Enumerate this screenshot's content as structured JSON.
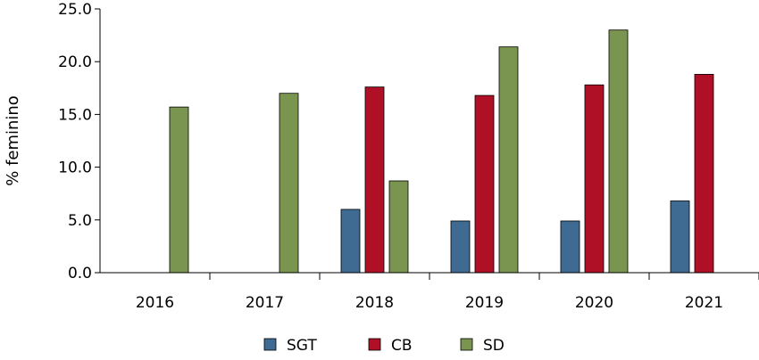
{
  "chart_data": {
    "type": "bar",
    "title": "",
    "xlabel": "",
    "ylabel": "% feminino",
    "ylim": [
      0,
      25
    ],
    "yticks": [
      "0.0",
      "5.0",
      "10.0",
      "15.0",
      "20.0",
      "25.0"
    ],
    "grid": false,
    "legend_position": "bottom",
    "categories": [
      "2016",
      "2017",
      "2018",
      "2019",
      "2020",
      "2021"
    ],
    "series": [
      {
        "name": "SGT",
        "color": "#3f6b93",
        "values": [
          null,
          null,
          6.0,
          4.9,
          4.9,
          6.8
        ]
      },
      {
        "name": "CB",
        "color": "#b01026",
        "values": [
          null,
          null,
          17.6,
          16.8,
          17.8,
          18.8
        ]
      },
      {
        "name": "SD",
        "color": "#7a9550",
        "values": [
          15.7,
          17.0,
          8.7,
          21.4,
          23.0,
          null
        ]
      }
    ]
  }
}
